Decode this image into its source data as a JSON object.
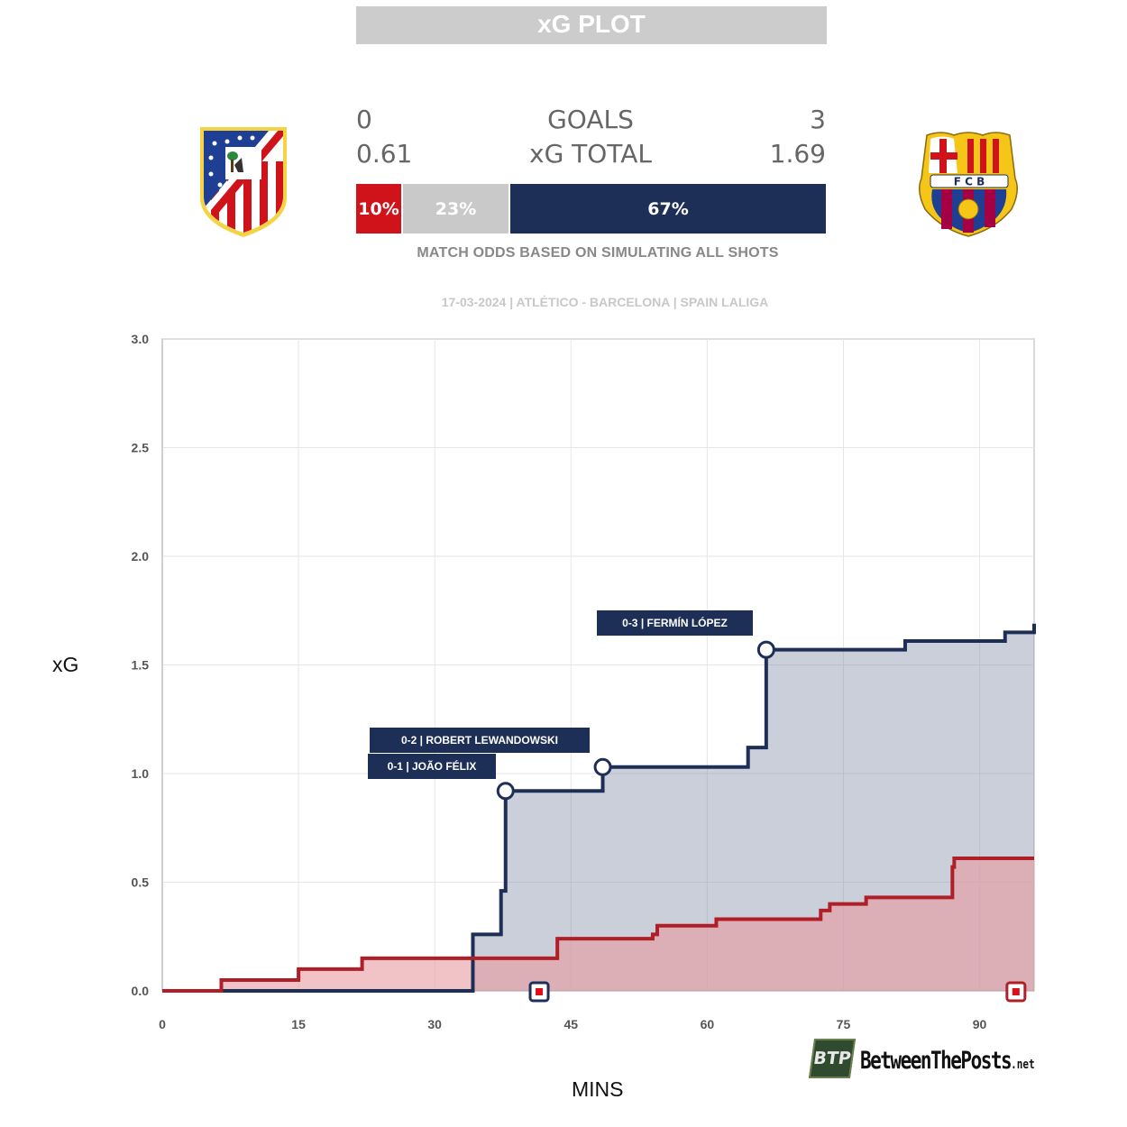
{
  "title": "xG PLOT",
  "scoreboard": {
    "goals_label": "GOALS",
    "xg_label": "xG TOTAL",
    "home_goals": "0",
    "away_goals": "3",
    "home_xg": "0.61",
    "away_xg": "1.69"
  },
  "odds": {
    "home": "10%",
    "draw": "23%",
    "away": "67%",
    "home_value": 10,
    "draw_value": 23,
    "away_value": 67,
    "note": "MATCH ODDS BASED ON SIMULATING ALL SHOTS"
  },
  "match_info": "17-03-2024 | ATLÉTICO - BARCELONA | SPAIN LALIGA",
  "teams": {
    "home": {
      "crest": "atletico-madrid-crest-icon",
      "color": "#d0121b"
    },
    "away": {
      "crest": "fc-barcelona-crest-icon",
      "color": "#1e2f57"
    }
  },
  "logo": {
    "text": "BetweenThePosts",
    "suffix": ".net",
    "badge": "BTP"
  },
  "chart_data": {
    "type": "line",
    "step": true,
    "xlabel": "MINS",
    "ylabel": "xG",
    "xlim": [
      0,
      96
    ],
    "ylim": [
      0,
      3.0
    ],
    "xticks": [
      0,
      15,
      30,
      45,
      60,
      75,
      90
    ],
    "yticks": [
      0.0,
      0.5,
      1.0,
      1.5,
      2.0,
      2.5,
      3.0
    ],
    "ytick_labels": [
      "0.0",
      "0.5",
      "1.0",
      "1.5",
      "2.0",
      "2.5",
      "3.0"
    ],
    "grid": true,
    "series": [
      {
        "team": "home",
        "color": "#b01e27",
        "fill": "#e89aa0",
        "points": [
          [
            0,
            0
          ],
          [
            6.5,
            0.05
          ],
          [
            15,
            0.1
          ],
          [
            22,
            0.15
          ],
          [
            43.5,
            0.24
          ],
          [
            54,
            0.26
          ],
          [
            54.5,
            0.3
          ],
          [
            61,
            0.33
          ],
          [
            72.5,
            0.37
          ],
          [
            73.5,
            0.4
          ],
          [
            77.5,
            0.43
          ],
          [
            87,
            0.57
          ],
          [
            87.2,
            0.61
          ],
          [
            96,
            0.61
          ]
        ]
      },
      {
        "team": "away",
        "color": "#1e2f57",
        "fill": "#7b86a3",
        "points": [
          [
            0,
            0
          ],
          [
            34,
            0
          ],
          [
            34.2,
            0.26
          ],
          [
            37.3,
            0.46
          ],
          [
            37.8,
            0.92
          ],
          [
            48.5,
            1.03
          ],
          [
            64.5,
            1.12
          ],
          [
            66.5,
            1.57
          ],
          [
            81.8,
            1.61
          ],
          [
            92.8,
            1.65
          ],
          [
            96,
            1.69
          ]
        ]
      }
    ],
    "goals": [
      {
        "minute": 37.8,
        "xg": 0.92,
        "label": "0-1 | JOÃO FÉLIX"
      },
      {
        "minute": 48.5,
        "xg": 1.03,
        "label": "0-2 | ROBERT LEWANDOWSKI"
      },
      {
        "minute": 66.5,
        "xg": 1.57,
        "label": "0-3 | FERMÍN LÓPEZ"
      }
    ],
    "markers": [
      {
        "minute": 41.5,
        "team": "away"
      },
      {
        "minute": 94,
        "team": "home"
      }
    ]
  }
}
